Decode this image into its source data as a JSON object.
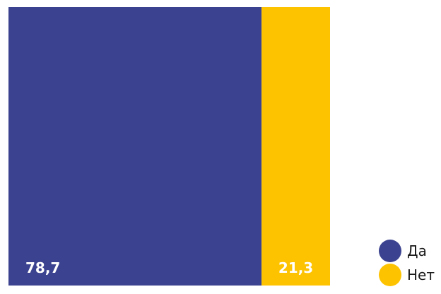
{
  "chart_data": {
    "type": "bar",
    "stacked": true,
    "orientation": "horizontal-100-percent",
    "title": "",
    "xlabel": "",
    "ylabel": "",
    "series": [
      {
        "name": "Да",
        "value": 78.7,
        "label": "78,7",
        "color": "#3B428F"
      },
      {
        "name": "Нет",
        "value": 21.3,
        "label": "21,3",
        "color": "#FDC300"
      }
    ],
    "total": 100,
    "legend": {
      "position": "bottom-right"
    },
    "grid": false
  }
}
